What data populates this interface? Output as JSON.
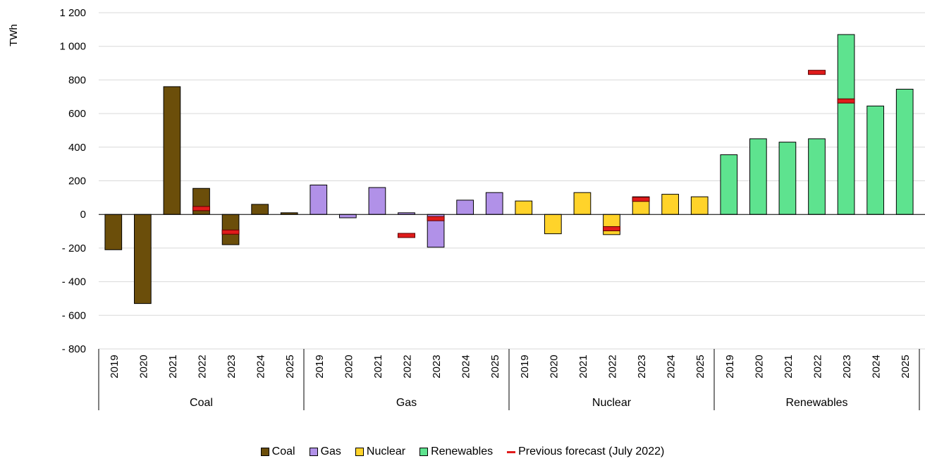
{
  "chart_data": {
    "type": "bar",
    "ylabel": "TWh",
    "ylim": [
      -800,
      1200
    ],
    "yticks": [
      -800,
      -600,
      -400,
      -200,
      0,
      200,
      400,
      600,
      800,
      1000,
      1200
    ],
    "ytick_labels": [
      "- 800",
      "- 600",
      "- 400",
      "- 200",
      "0",
      "200",
      "400",
      "600",
      "800",
      "1 000",
      "1 200"
    ],
    "grid": true,
    "legend_position": "bottom",
    "years": [
      "2019",
      "2020",
      "2021",
      "2022",
      "2023",
      "2024",
      "2025"
    ],
    "groups": [
      {
        "name": "Coal",
        "color": "#6b4e0a",
        "values": [
          -210,
          -530,
          760,
          155,
          -180,
          60,
          10
        ],
        "previous_forecast": [
          null,
          null,
          null,
          35,
          -105,
          null,
          null
        ]
      },
      {
        "name": "Gas",
        "color": "#b191e8",
        "values": [
          175,
          -20,
          160,
          10,
          -195,
          85,
          130
        ],
        "previous_forecast": [
          null,
          null,
          null,
          -125,
          -25,
          null,
          null
        ]
      },
      {
        "name": "Nuclear",
        "color": "#ffd32a",
        "values": [
          80,
          -115,
          130,
          -120,
          105,
          120,
          105
        ],
        "previous_forecast": [
          null,
          null,
          null,
          -85,
          90,
          null,
          null
        ]
      },
      {
        "name": "Renewables",
        "color": "#5ee38f",
        "values": [
          355,
          450,
          430,
          450,
          1070,
          645,
          745
        ],
        "previous_forecast": [
          null,
          null,
          null,
          845,
          675,
          null,
          null
        ]
      }
    ],
    "forecast_series": {
      "name": "Previous forecast (July 2022)",
      "color": "#e01b1b"
    }
  }
}
